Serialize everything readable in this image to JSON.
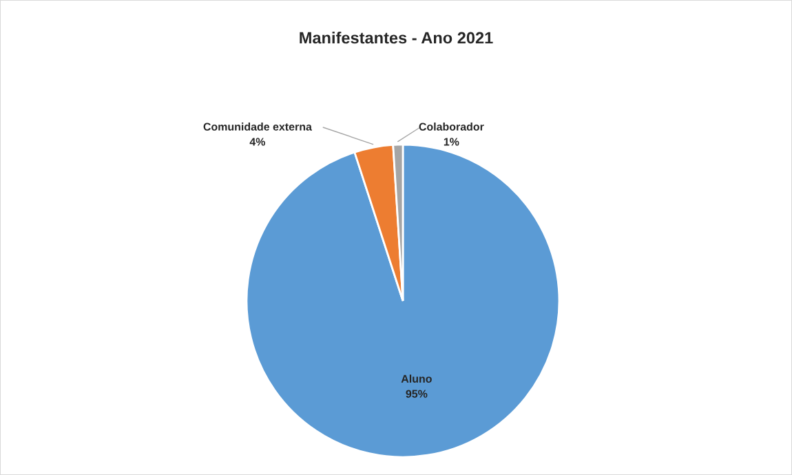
{
  "chart_data": {
    "type": "pie",
    "title": "Manifestantes - Ano 2021",
    "categories": [
      "Aluno",
      "Comunidade externa",
      "Colaborador"
    ],
    "values": [
      95,
      4,
      1
    ],
    "value_labels": [
      "95%",
      "4%",
      "1%"
    ],
    "colors": [
      "#5b9bd5",
      "#ed7d31",
      "#a5a5a5"
    ],
    "legend": false
  }
}
